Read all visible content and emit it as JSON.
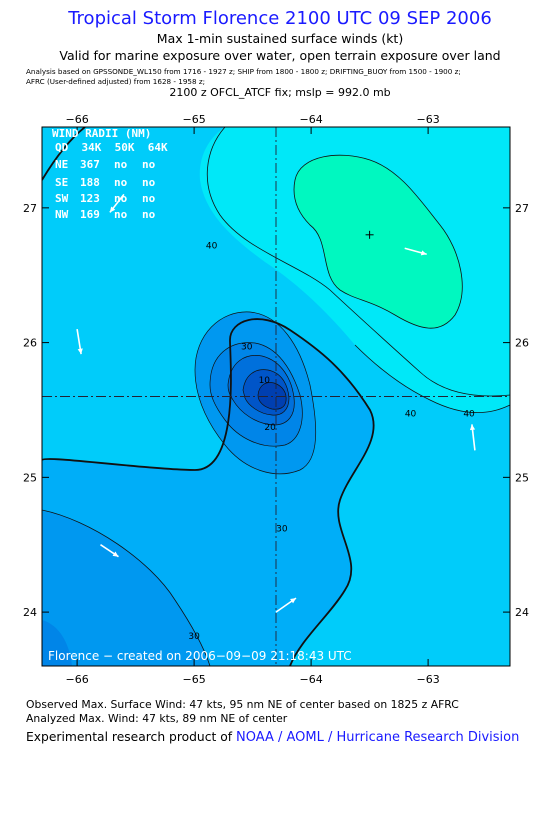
{
  "header": {
    "title": "Tropical Storm Florence 2100 UTC 09 SEP 2006",
    "subtitle": "Max 1-min sustained surface winds (kt)",
    "valid": "Valid for marine exposure over water, open terrain exposure over land",
    "analysis_line1": "Analysis based on  GPSSONDE_WL150 from 1716 - 1927 z;  SHIP from 1800 - 1800 z;  DRIFTING_BUOY from 1500 - 1900 z;",
    "analysis_line2": "AFRC (User-defined adjusted) from 1628 - 1958 z;",
    "fix": "2100 z OFCL_ATCF fix; mslp = 992.0 mb"
  },
  "wind_radii": {
    "title": "WIND RADII (NM)",
    "header": "QD  34K  50K  64K",
    "rows": [
      {
        "quad": "NE",
        "r34": "367",
        "r50": "no",
        "r64": "no"
      },
      {
        "quad": "SE",
        "r34": "188",
        "r50": "no",
        "r64": "no"
      },
      {
        "quad": "SW",
        "r34": "123",
        "r50": "no",
        "r64": "no"
      },
      {
        "quad": "NW",
        "r34": "169",
        "r50": "no",
        "r64": "no"
      }
    ]
  },
  "chart_data": {
    "type": "contour",
    "xlim": [
      -66.3,
      -62.3
    ],
    "ylim": [
      23.6,
      27.6
    ],
    "x_ticks": [
      -66,
      -65,
      -64,
      -63
    ],
    "y_ticks": [
      24,
      25,
      26,
      27
    ],
    "x_tick_labels": [
      "−66",
      "−65",
      "−64",
      "−63"
    ],
    "y_tick_labels": [
      "24",
      "25",
      "26",
      "27"
    ],
    "center": {
      "lon": -64.3,
      "lat": 25.6
    },
    "max_wind_marker": {
      "lon": -63.5,
      "lat": 26.8
    },
    "contour_labels": [
      {
        "text": "40",
        "lon": -64.85,
        "lat": 26.7
      },
      {
        "text": "30",
        "lon": -64.55,
        "lat": 25.95
      },
      {
        "text": "40",
        "lon": -63.15,
        "lat": 25.45
      },
      {
        "text": "40",
        "lon": -62.65,
        "lat": 25.45
      },
      {
        "text": "30",
        "lon": -64.25,
        "lat": 24.6
      },
      {
        "text": "10",
        "lon": -64.4,
        "lat": 25.7
      },
      {
        "text": "20",
        "lon": -64.35,
        "lat": 25.35
      },
      {
        "text": "30",
        "lon": -65.0,
        "lat": 23.8
      }
    ],
    "observations": [
      {
        "lon": -65.6,
        "lat": 27.1,
        "dx": -14,
        "dy": 18
      },
      {
        "lon": -63.2,
        "lat": 26.7,
        "dx": 22,
        "dy": 6
      },
      {
        "lon": -66.0,
        "lat": 26.1,
        "dx": 4,
        "dy": 25
      },
      {
        "lon": -62.6,
        "lat": 25.2,
        "dx": -3,
        "dy": -26
      },
      {
        "lon": -65.8,
        "lat": 24.5,
        "dx": 18,
        "dy": 12
      },
      {
        "lon": -64.3,
        "lat": 24.0,
        "dx": 20,
        "dy": -14
      }
    ],
    "colors": {
      "cyan_light": "#00e8f8",
      "cyan": "#00ccfa",
      "light_blue": "#00aef8",
      "blue": "#0098f0",
      "mid_blue": "#0085e8",
      "deep_blue": "#0070dc",
      "darker_blue": "#0055c8",
      "darkest_blue": "#003fb0",
      "green": "#00f8c0"
    },
    "credit": "Florence − created on 2006−09−09 21:18:43 UTC"
  },
  "footer": {
    "observed": "Observed Max. Surface Wind: 47 kts, 95 nm NE of center based on 1825 z AFRC",
    "analyzed": "Analyzed Max. Wind: 47 kts, 89 nm NE of center",
    "product_prefix": "Experimental research product of ",
    "product_link": "NOAA / AOML / Hurricane Research Division"
  }
}
